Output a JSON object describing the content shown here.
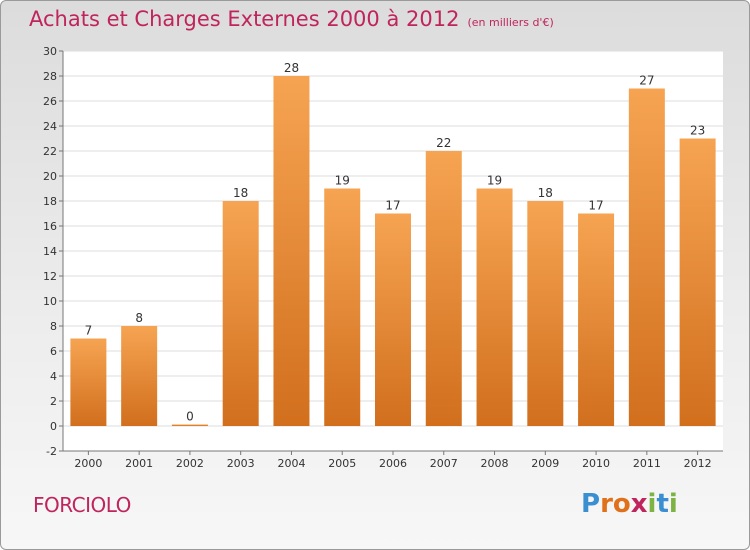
{
  "header": {
    "title": "Achats et Charges Externes 2000 à 2012",
    "unit": "(en milliers d'€)"
  },
  "footer": {
    "commune": "FORCIOLO",
    "logo": "Proxiti"
  },
  "colors": {
    "bar_light": "#f6a452",
    "bar_dark": "#d16f1d",
    "title": "#c0245c"
  },
  "chart_data": {
    "type": "bar",
    "categories": [
      "2000",
      "2001",
      "2002",
      "2003",
      "2004",
      "2005",
      "2006",
      "2007",
      "2008",
      "2009",
      "2010",
      "2011",
      "2012"
    ],
    "values": [
      7,
      8,
      0,
      18,
      28,
      19,
      17,
      22,
      19,
      18,
      17,
      27,
      23
    ],
    "ylim": [
      -2,
      30
    ],
    "yticks": [
      -2,
      0,
      2,
      4,
      6,
      8,
      10,
      12,
      14,
      16,
      18,
      20,
      22,
      24,
      26,
      28,
      30
    ],
    "grid": true,
    "data_labels": true
  }
}
